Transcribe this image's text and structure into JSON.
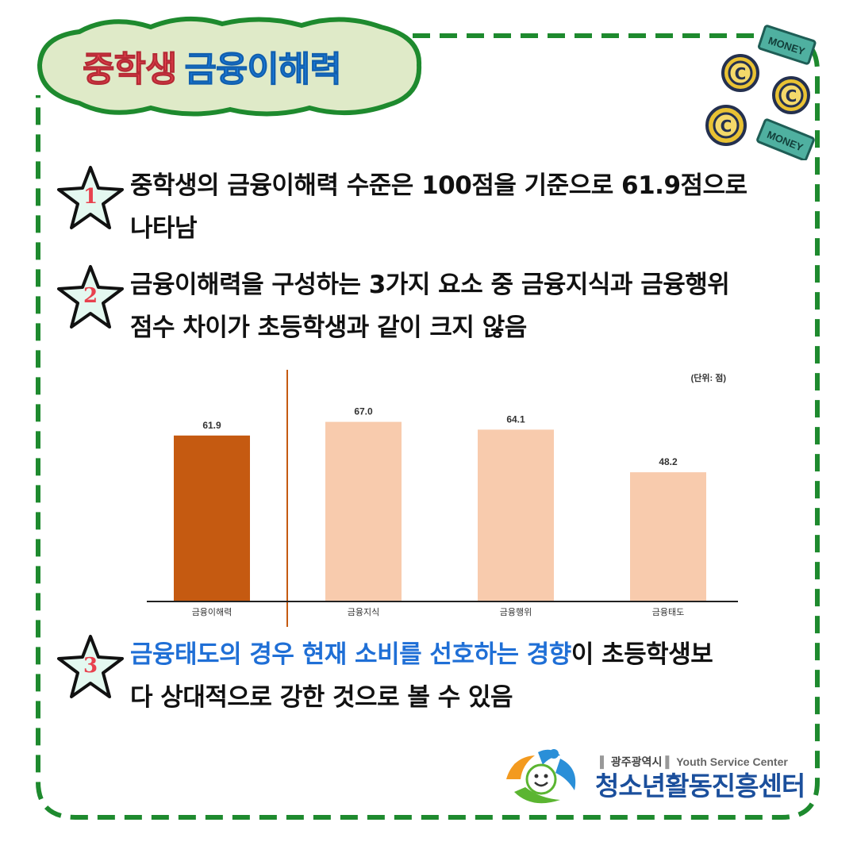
{
  "title": {
    "part1": "중학생",
    "part2": "금융이해력"
  },
  "points": [
    {
      "number": "1",
      "lines": [
        "중학생의 금융이해력 수준은 100점을 기준으로 61.9점으로",
        "나타남"
      ]
    },
    {
      "number": "2",
      "lines": [
        "금융이해력을 구성하는 3가지 요소 중 금융지식과 금융행위",
        "점수 차이가 초등학생과 같이 크지 않음"
      ]
    },
    {
      "number": "3",
      "highlight": "금융태도의 경우 현재 소비를 선호하는 경향",
      "rest": "이 초등학생보",
      "line2": "다 상대적으로 강한 것으로 볼 수 있음"
    }
  ],
  "chart_data": {
    "type": "bar",
    "unit_label": "(단위: 점)",
    "categories": [
      "금융이해력",
      "금융지식",
      "금융행위",
      "금융태도"
    ],
    "values": [
      61.9,
      67.0,
      64.1,
      48.2
    ],
    "value_labels": [
      "61.9",
      "67.0",
      "64.1",
      "48.2"
    ],
    "colors": [
      "#c55a11",
      "#f8cbad",
      "#f8cbad",
      "#f8cbad"
    ],
    "separator_color": "#c55a11",
    "ylim": [
      0,
      100
    ],
    "grid": false
  },
  "logo": {
    "region": "광주광역시",
    "english": "Youth Service Center",
    "name": "청소년활동진흥센터"
  },
  "coins": {
    "coin_letter": "C",
    "bill_text": "MONEY"
  },
  "colors": {
    "frame_green": "#1e8a2e",
    "badge_fill": "#dfeac8",
    "title_red": "#e8414e",
    "title_blue": "#1a7ee0",
    "star_fill": "#e4f8f0"
  }
}
